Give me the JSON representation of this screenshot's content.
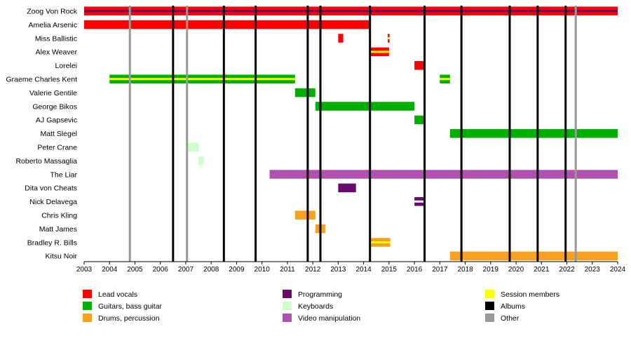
{
  "chart_data": {
    "type": "timeline",
    "x_range": [
      2003,
      2024
    ],
    "x_ticks": [
      "2003",
      "2004",
      "2005",
      "2006",
      "2007",
      "2008",
      "2009",
      "2010",
      "2011",
      "2012",
      "2013",
      "2014",
      "2015",
      "2016",
      "2017",
      "2018",
      "2019",
      "2020",
      "2021",
      "2022",
      "2023",
      "2024"
    ],
    "members": [
      "Zoog Von Rock",
      "Amelia Arsenic",
      "Miss Ballistic",
      "Alex Weaver",
      "Lorelei",
      "Graeme Charles Kent",
      "Valerie Gentile",
      "George Bikos",
      "AJ Gapsevic",
      "Matt Slegel",
      "Peter Crane",
      "Roberto Massaglia",
      "The Liar",
      "Dita von Cheats",
      "Nick Delavega",
      "Chris Kling",
      "Matt James",
      "Bradley R. Bills",
      "Kitsu Noir"
    ],
    "roles": {
      "lead_vocals": {
        "label": "Lead vocals",
        "color": "#ff0000"
      },
      "guitars": {
        "label": "Guitars, bass guitar",
        "color": "#00b000"
      },
      "drums": {
        "label": "Drums, percussion",
        "color": "#f8a020"
      },
      "programming": {
        "label": "Programming",
        "color": "#6a0a6a"
      },
      "keyboards": {
        "label": "Keyboards",
        "color": "#ccffcc"
      },
      "video": {
        "label": "Video manipulation",
        "color": "#b050b0"
      },
      "session": {
        "label": "Session members",
        "color": "#ffff00"
      },
      "albums": {
        "label": "Albums",
        "color": "#000000"
      },
      "other": {
        "label": "Other",
        "color": "#999999"
      }
    },
    "legend_order": [
      "lead_vocals",
      "guitars",
      "drums",
      "programming",
      "keyboards",
      "video",
      "session",
      "albums",
      "other"
    ],
    "bars": [
      {
        "member": 0,
        "start": 2003.0,
        "end": 2024.0,
        "role": "lead_vocals",
        "accent": "programming"
      },
      {
        "member": 1,
        "start": 2003.0,
        "end": 2014.25,
        "role": "lead_vocals"
      },
      {
        "member": 2,
        "start": 2013.0,
        "end": 2013.2,
        "role": "lead_vocals"
      },
      {
        "member": 2,
        "start": 2014.95,
        "end": 2015.02,
        "role": "lead_vocals",
        "accent": "session"
      },
      {
        "member": 3,
        "start": 2014.25,
        "end": 2015.0,
        "role": "lead_vocals",
        "accent": "session"
      },
      {
        "member": 4,
        "start": 2016.0,
        "end": 2016.4,
        "role": "lead_vocals"
      },
      {
        "member": 5,
        "start": 2004.0,
        "end": 2011.3,
        "role": "guitars",
        "accent": "session"
      },
      {
        "member": 5,
        "start": 2017.0,
        "end": 2017.4,
        "role": "guitars",
        "accent": "session"
      },
      {
        "member": 6,
        "start": 2011.3,
        "end": 2012.1,
        "role": "guitars"
      },
      {
        "member": 7,
        "start": 2012.1,
        "end": 2016.0,
        "role": "guitars"
      },
      {
        "member": 8,
        "start": 2016.0,
        "end": 2016.4,
        "role": "guitars"
      },
      {
        "member": 9,
        "start": 2017.4,
        "end": 2024.0,
        "role": "guitars"
      },
      {
        "member": 10,
        "start": 2007.0,
        "end": 2007.5,
        "role": "keyboards"
      },
      {
        "member": 11,
        "start": 2007.5,
        "end": 2007.7,
        "role": "keyboards"
      },
      {
        "member": 12,
        "start": 2010.3,
        "end": 2024.0,
        "role": "video"
      },
      {
        "member": 13,
        "start": 2013.0,
        "end": 2013.7,
        "role": "programming"
      },
      {
        "member": 14,
        "start": 2016.0,
        "end": 2016.4,
        "role": "programming",
        "accent": "white"
      },
      {
        "member": 15,
        "start": 2011.3,
        "end": 2012.1,
        "role": "drums"
      },
      {
        "member": 16,
        "start": 2012.1,
        "end": 2012.5,
        "role": "drums"
      },
      {
        "member": 17,
        "start": 2014.25,
        "end": 2015.05,
        "role": "drums",
        "accent": "session"
      },
      {
        "member": 18,
        "start": 2017.4,
        "end": 2024.0,
        "role": "drums"
      }
    ],
    "album_lines": [
      2006.5,
      2008.5,
      2009.75,
      2011.8,
      2012.3,
      2014.25,
      2016.4,
      2017.85,
      2019.75,
      2020.85,
      2021.95
    ],
    "other_lines": [
      2004.8,
      2007.05,
      2022.35
    ]
  }
}
